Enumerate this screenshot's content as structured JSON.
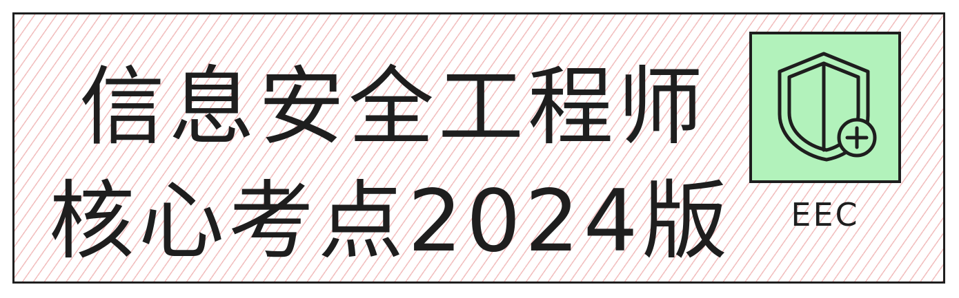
{
  "title": {
    "line1": "信息安全工程师",
    "line2": "核心考点2024版"
  },
  "logo": {
    "icon": "shield-plus-icon",
    "caption": "EEC",
    "background": "#b2f2bb"
  },
  "colors": {
    "ink": "#1e1e1e",
    "hatch": "#e88c8c",
    "logo_fill": "#b2f2bb"
  }
}
